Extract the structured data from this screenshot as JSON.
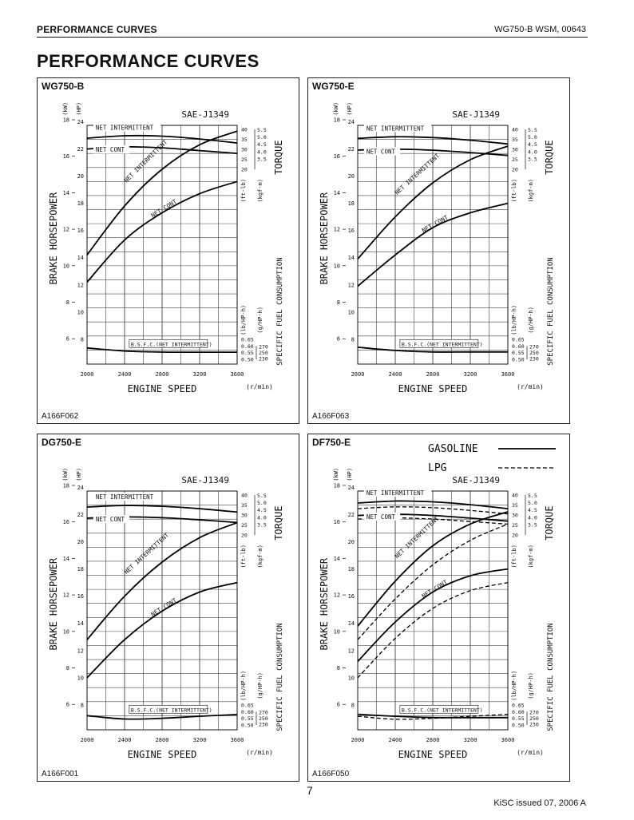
{
  "header": {
    "section": "PERFORMANCE CURVES",
    "doc_ref": "WG750-B  WSM, 00643"
  },
  "page_title": "PERFORMANCE CURVES",
  "page_number": "7",
  "footer": "KiSC issued 07, 2006 A",
  "common_labels": {
    "standard": "SAE-J1349",
    "net_intermittent": "NET INTERMITTENT",
    "net_cont": "NET CONT",
    "bsfc": "B.S.F.C.(NET INTERMITTENT)",
    "engine_speed": "ENGINE SPEED",
    "rpm_unit": "(r/min)",
    "brake_horsepower": "BRAKE HORSEPOWER",
    "kw_unit": "(kW)",
    "hp_unit": "(HP)",
    "torque": "TORQUE",
    "ftlb_unit": "(ft-lb)",
    "kgfm_unit": "(kgf-m)",
    "sfc": "SPECIFIC FUEL CONSUMPTION",
    "lbhph_unit": "(lb/HP-h)",
    "ghph_unit": "(g/HP-h)",
    "x_ticks": [
      "2000",
      "2400",
      "2800",
      "3200",
      "3600"
    ],
    "kw_ticks": [
      "6",
      "8",
      "10",
      "12",
      "14",
      "16",
      "18"
    ],
    "hp_ticks": [
      "8",
      "10",
      "12",
      "14",
      "16",
      "18",
      "20",
      "22",
      "24"
    ],
    "ftlb_ticks": [
      "20",
      "25",
      "30",
      "35",
      "40"
    ],
    "kgfm_ticks": [
      "3.5",
      "4.0",
      "4.5",
      "5.0",
      "5.5"
    ],
    "lbhph_ticks": [
      "0.50",
      "0.55",
      "0.60",
      "0.65"
    ],
    "ghph_ticks": [
      "230",
      "250",
      "270"
    ]
  },
  "legend": {
    "gasoline": "GASOLINE",
    "lpg": "LPG"
  },
  "panels": [
    {
      "name": "WG750-B",
      "code": "A166F062",
      "chart_data": {
        "type": "line",
        "x": [
          2000,
          2400,
          2800,
          3200,
          3600
        ],
        "series": [
          {
            "name": "NET INTERMITTENT",
            "quantity": "torque_ftlb",
            "values": [
              35.6,
              36.8,
              36.6,
              35.2,
              33.2
            ]
          },
          {
            "name": "NET CONT",
            "quantity": "torque_ftlb",
            "values": [
              30.2,
              31.3,
              30.8,
              29.4,
              28.0
            ]
          },
          {
            "name": "NET INTERMITTENT",
            "quantity": "power_hp",
            "values": [
              14.2,
              17.8,
              20.5,
              22.3,
              23.3
            ]
          },
          {
            "name": "NET CONT",
            "quantity": "power_hp",
            "values": [
              12.2,
              15.3,
              17.3,
              18.7,
              19.6
            ]
          },
          {
            "name": "B.S.F.C.(NET INTERMITTENT)",
            "quantity": "bsfc_lbhph",
            "values": [
              0.585,
              0.562,
              0.554,
              0.553,
              0.553
            ]
          }
        ]
      }
    },
    {
      "name": "WG750-E",
      "code": "A166F063",
      "chart_data": {
        "type": "line",
        "x": [
          2000,
          2400,
          2800,
          3200,
          3600
        ],
        "series": [
          {
            "name": "NET INTERMITTENT",
            "quantity": "torque_ftlb",
            "values": [
              35.5,
              36.3,
              35.9,
              34.6,
              32.7
            ]
          },
          {
            "name": "NET CONT",
            "quantity": "torque_ftlb",
            "values": [
              29.7,
              30.1,
              29.6,
              28.4,
              27.0
            ]
          },
          {
            "name": "NET INTERMITTENT",
            "quantity": "power_hp",
            "values": [
              13.9,
              17.0,
              19.5,
              21.2,
              22.2
            ]
          },
          {
            "name": "NET CONT",
            "quantity": "power_hp",
            "values": [
              11.9,
              14.2,
              16.2,
              17.3,
              18.0
            ]
          },
          {
            "name": "B.S.F.C.(NET INTERMITTENT)",
            "quantity": "bsfc_lbhph",
            "values": [
              0.59,
              0.566,
              0.555,
              0.555,
              0.555
            ]
          }
        ]
      }
    },
    {
      "name": "DG750-E",
      "code": "A166F001",
      "chart_data": {
        "type": "line",
        "x": [
          2000,
          2400,
          2800,
          3200,
          3600
        ],
        "series": [
          {
            "name": "NET INTERMITTENT",
            "quantity": "torque_ftlb",
            "values": [
              34.0,
              34.8,
              34.4,
              33.2,
              31.5
            ]
          },
          {
            "name": "NET CONT",
            "quantity": "torque_ftlb",
            "values": [
              28.5,
              29.1,
              28.7,
              27.6,
              26.3
            ]
          },
          {
            "name": "NET INTERMITTENT",
            "quantity": "power_hp",
            "values": [
              12.8,
              16.0,
              18.5,
              20.3,
              21.4
            ]
          },
          {
            "name": "NET CONT",
            "quantity": "power_hp",
            "values": [
              10.0,
              12.8,
              14.9,
              16.3,
              17.0
            ]
          },
          {
            "name": "B.S.F.C.(NET INTERMITTENT)",
            "quantity": "bsfc_lbhph",
            "values": [
              0.57,
              0.545,
              0.55,
              0.565,
              0.578
            ]
          }
        ]
      }
    },
    {
      "name": "DF750-E",
      "code": "A166F050",
      "chart_data": {
        "type": "line",
        "x": [
          2000,
          2400,
          2800,
          3200,
          3600
        ],
        "series": [
          {
            "name": "NET INTERMITTENT GASOLINE",
            "quantity": "torque_ftlb",
            "style": "solid",
            "values": [
              36.0,
              37.0,
              36.6,
              35.2,
              33.2
            ]
          },
          {
            "name": "NET INTERMITTENT LPG",
            "quantity": "torque_ftlb",
            "style": "dashed",
            "values": [
              33.2,
              34.1,
              33.7,
              32.3,
              30.6
            ]
          },
          {
            "name": "NET CONT GASOLINE",
            "quantity": "torque_ftlb",
            "style": "solid",
            "values": [
              29.8,
              30.4,
              29.8,
              28.5,
              27.0
            ]
          },
          {
            "name": "NET CONT LPG",
            "quantity": "torque_ftlb",
            "style": "dashed",
            "values": [
              28.0,
              28.6,
              28.0,
              26.8,
              25.5
            ]
          },
          {
            "name": "NET INTERMITTENT GASOLINE",
            "quantity": "power_hp",
            "style": "solid",
            "values": [
              13.8,
              17.1,
              19.7,
              21.3,
              22.2
            ]
          },
          {
            "name": "NET INTERMITTENT LPG",
            "quantity": "power_hp",
            "style": "dashed",
            "values": [
              12.8,
              15.8,
              18.3,
              20.1,
              21.3
            ]
          },
          {
            "name": "NET CONT GASOLINE",
            "quantity": "power_hp",
            "style": "solid",
            "values": [
              11.2,
              14.1,
              16.3,
              17.5,
              18.0
            ]
          },
          {
            "name": "NET CONT LPG",
            "quantity": "power_hp",
            "style": "dashed",
            "values": [
              10.0,
              12.9,
              15.1,
              16.4,
              17.0
            ]
          },
          {
            "name": "B.S.F.C. GASOLINE",
            "quantity": "bsfc_lbhph",
            "style": "solid",
            "values": [
              0.58,
              0.565,
              0.556,
              0.555,
              0.555
            ]
          },
          {
            "name": "B.S.F.C. LPG",
            "quantity": "bsfc_lbhph",
            "style": "dashed",
            "values": [
              0.565,
              0.543,
              0.55,
              0.565,
              0.58
            ]
          }
        ]
      }
    }
  ]
}
